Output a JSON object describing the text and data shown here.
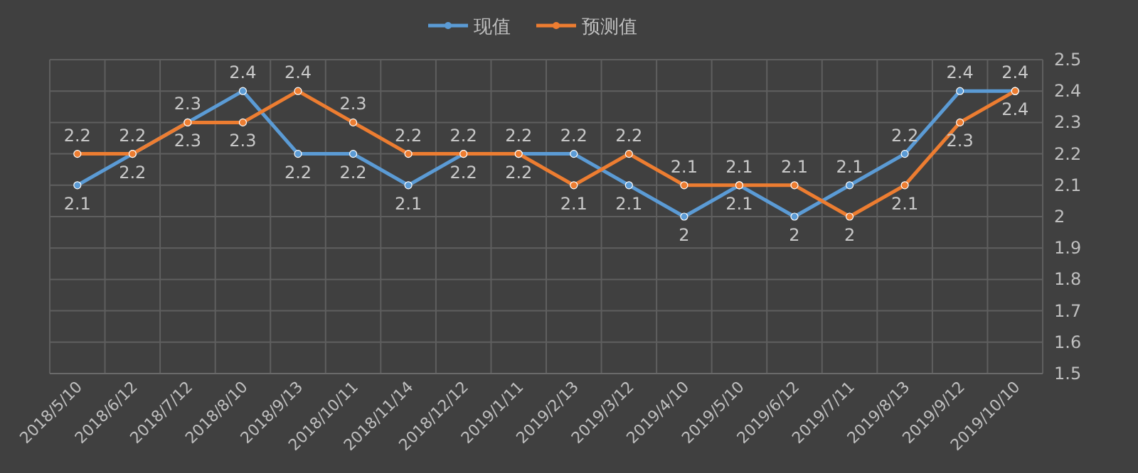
{
  "chart_data": {
    "type": "line",
    "categories": [
      "2018/5/10",
      "2018/6/12",
      "2018/7/12",
      "2018/8/10",
      "2018/9/13",
      "2018/10/11",
      "2018/11/14",
      "2018/12/12",
      "2019/1/11",
      "2019/2/13",
      "2019/3/12",
      "2019/4/10",
      "2019/5/10",
      "2019/6/12",
      "2019/7/11",
      "2019/8/13",
      "2019/9/12",
      "2019/10/10"
    ],
    "series": [
      {
        "name": "现值",
        "color": "#5b9bd5",
        "values": [
          2.1,
          2.2,
          2.3,
          2.4,
          2.2,
          2.2,
          2.1,
          2.2,
          2.2,
          2.2,
          2.1,
          2,
          2.1,
          2,
          2.1,
          2.2,
          2.4,
          2.4
        ]
      },
      {
        "name": "预测值",
        "color": "#ed7d31",
        "values": [
          2.2,
          2.2,
          2.3,
          2.3,
          2.4,
          2.3,
          2.2,
          2.2,
          2.2,
          2.1,
          2.2,
          2.1,
          2.1,
          2.1,
          2,
          2.1,
          2.3,
          2.4
        ]
      }
    ],
    "ylim": [
      1.5,
      2.5
    ],
    "yticks": [
      1.5,
      1.6,
      1.7,
      1.8,
      1.9,
      2,
      2.1,
      2.2,
      2.3,
      2.4,
      2.5
    ],
    "grid": true,
    "legend": "top",
    "marker": "circle",
    "line_style": "solid",
    "data_labels": true
  }
}
